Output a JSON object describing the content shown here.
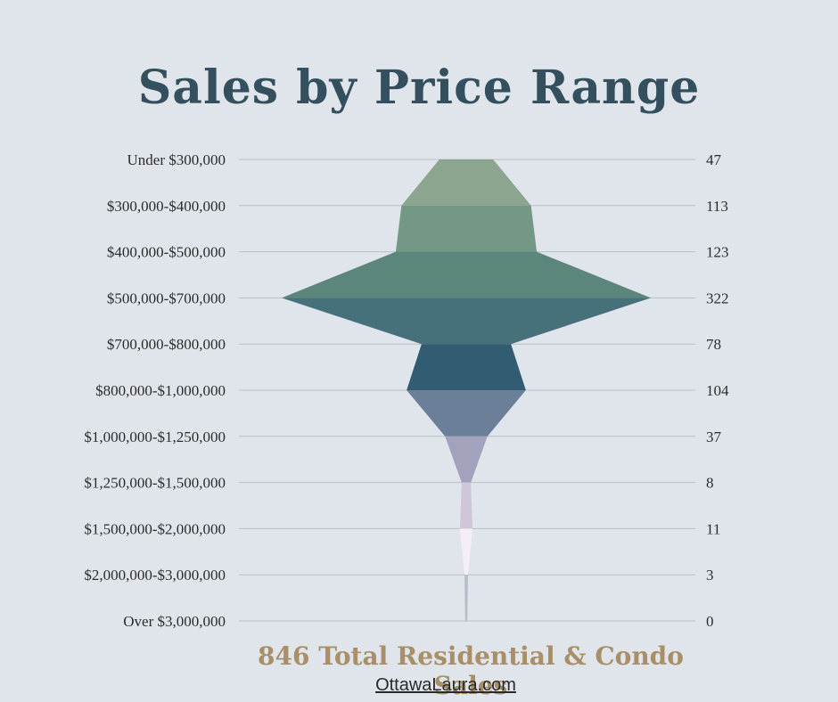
{
  "page": {
    "title": "Sales by Price Range",
    "total_caption": "846 Total Residential & Condo Sales",
    "website": "OttawaLaura.com"
  },
  "chart_data": {
    "type": "area",
    "subtype": "funnel",
    "title": "Sales by Price Range",
    "categories": [
      "Under $300,000",
      "$300,000-$400,000",
      "$400,000-$500,000",
      "$500,000-$700,000",
      "$700,000-$800,000",
      "$800,000-$1,000,000",
      "$1,000,000-$1,250,000",
      "$1,250,000-$1,500,000",
      "$1,500,000-$2,000,000",
      "$2,000,000-$3,000,000",
      "Over $3,000,000"
    ],
    "values": [
      47,
      113,
      123,
      322,
      78,
      104,
      37,
      8,
      11,
      3,
      0
    ],
    "value_labels": [
      "47",
      "113",
      "123",
      "322",
      "78",
      "104",
      "37",
      "8",
      "11",
      "3",
      "0"
    ],
    "grid": true,
    "colors": [
      "#8ca58f",
      "#739886",
      "#5c857c",
      "#46707a",
      "#325c72",
      "#6b7f99",
      "#a2a2bd",
      "#cfc6da",
      "#f6eef6",
      "#b5bccb"
    ]
  }
}
